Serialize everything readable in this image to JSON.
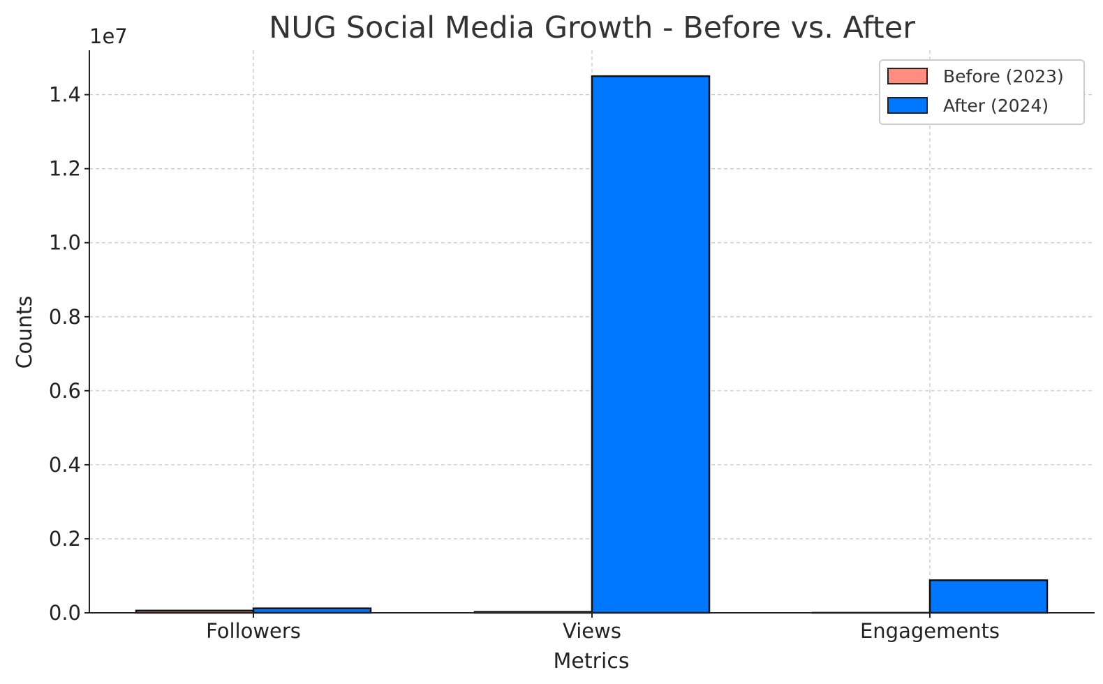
{
  "chart_data": {
    "type": "bar",
    "title": "NUG Social Media Growth - Before vs. After",
    "xlabel": "Metrics",
    "ylabel": "Counts",
    "y_offset_label": "1e7",
    "categories": [
      "Followers",
      "Views",
      "Engagements"
    ],
    "series": [
      {
        "name": "Before (2023)",
        "values": [
          60000,
          25000,
          2000
        ],
        "color": "#ff8c7f"
      },
      {
        "name": "After (2024)",
        "values": [
          120000,
          14500000,
          880000
        ],
        "color": "#0077ff"
      }
    ],
    "ylim": [
      0,
      15200000
    ],
    "yticks": [
      0,
      2000000,
      4000000,
      6000000,
      8000000,
      10000000,
      12000000,
      14000000
    ],
    "ytick_labels": [
      "0.0",
      "0.2",
      "0.4",
      "0.6",
      "0.8",
      "1.0",
      "1.2",
      "1.4"
    ],
    "grid": true,
    "legend_position": "top-right"
  }
}
